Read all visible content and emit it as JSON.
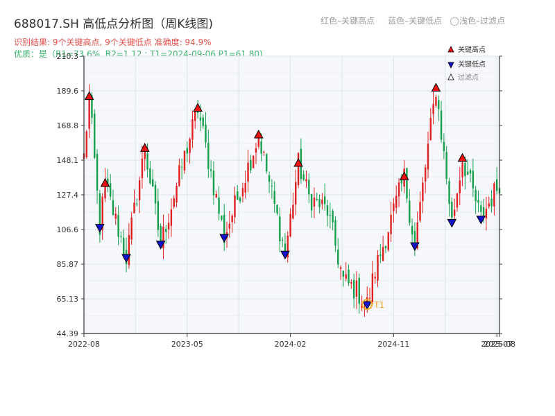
{
  "header": {
    "title": "688017.SH 高低点分析图（周K线图)",
    "legend_hint": "红色–关键高点     蓝色–关键低点   ◯浅色–过滤点",
    "result": "识别结果: 9个关键高点, 9个关键低点  准确度: 94.9%",
    "quality": "优质：是（R1=73.6%, R2=1.12 ; T1=2024-09-06 P1=61.80)"
  },
  "colors": {
    "up": "#e02020",
    "down": "#14a04a",
    "high_marker": "#ee1111",
    "low_marker": "#1111cc",
    "filter_marker": "#ffffff",
    "t1_marker": "#f5a623",
    "plot_bg": "#f5f7fa",
    "grid": "#dde3ea"
  },
  "chart_data": {
    "type": "candlestick",
    "ylim": [
      44.39,
      210.3
    ],
    "y_ticks": [
      "210.3",
      "189.6",
      "168.8",
      "148.1",
      "127.4",
      "106.6",
      "85.87",
      "65.13",
      "44.39"
    ],
    "x_ticks": [
      "2022-08",
      "2023-05",
      "2024-02",
      "2024-11",
      "2025-07",
      "2025-08"
    ],
    "x_tick_weeks": [
      0,
      39,
      78,
      117,
      156,
      157
    ],
    "total_weeks": 157,
    "legend": [
      "关键高点",
      "关键低点",
      "过滤点"
    ],
    "t1_label": "T1",
    "t1_point": {
      "week": 107,
      "value": 61.8
    },
    "path": [
      {
        "w": 0,
        "v": 150
      },
      {
        "w": 2,
        "v": 186
      },
      {
        "w": 6,
        "v": 108
      },
      {
        "w": 8,
        "v": 134
      },
      {
        "w": 16,
        "v": 90
      },
      {
        "w": 23,
        "v": 155
      },
      {
        "w": 29,
        "v": 98
      },
      {
        "w": 43,
        "v": 179
      },
      {
        "w": 53,
        "v": 102
      },
      {
        "w": 66,
        "v": 163
      },
      {
        "w": 76,
        "v": 92
      },
      {
        "w": 81,
        "v": 146
      },
      {
        "w": 85,
        "v": 126
      },
      {
        "w": 92,
        "v": 118
      },
      {
        "w": 98,
        "v": 76
      },
      {
        "w": 103,
        "v": 70
      },
      {
        "w": 107,
        "v": 61.8
      },
      {
        "w": 110,
        "v": 82
      },
      {
        "w": 112,
        "v": 92
      },
      {
        "w": 121,
        "v": 138
      },
      {
        "w": 125,
        "v": 97
      },
      {
        "w": 133,
        "v": 191
      },
      {
        "w": 139,
        "v": 111
      },
      {
        "w": 143,
        "v": 149
      },
      {
        "w": 150,
        "v": 113
      },
      {
        "w": 157,
        "v": 135
      }
    ],
    "key_highs": [
      {
        "week": 2,
        "value": 186
      },
      {
        "week": 8,
        "value": 134
      },
      {
        "week": 23,
        "value": 155
      },
      {
        "week": 43,
        "value": 179
      },
      {
        "week": 66,
        "value": 163
      },
      {
        "week": 81,
        "value": 146
      },
      {
        "week": 121,
        "value": 138
      },
      {
        "week": 133,
        "value": 191
      },
      {
        "week": 143,
        "value": 149
      }
    ],
    "key_lows": [
      {
        "week": 6,
        "value": 108
      },
      {
        "week": 16,
        "value": 90
      },
      {
        "week": 29,
        "value": 98
      },
      {
        "week": 53,
        "value": 102
      },
      {
        "week": 76,
        "value": 92
      },
      {
        "week": 107,
        "value": 61.8
      },
      {
        "week": 125,
        "value": 97
      },
      {
        "week": 139,
        "value": 111
      },
      {
        "week": 150,
        "value": 113
      }
    ]
  }
}
